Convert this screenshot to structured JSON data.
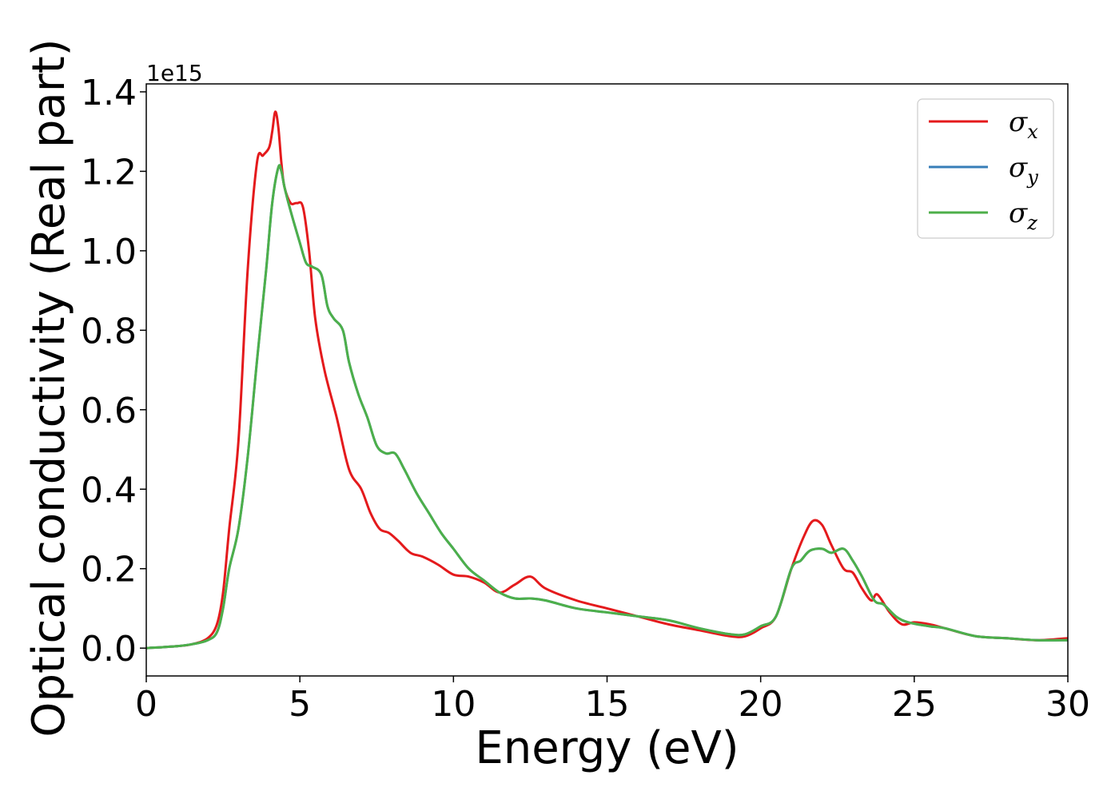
{
  "chart_data": {
    "type": "line",
    "title": "",
    "xlabel": "Energy (eV)",
    "ylabel": "Optical conductivity (Real part)",
    "y_offset_label": "1e15",
    "xlim": [
      0,
      30
    ],
    "ylim": [
      -0.07,
      1.42
    ],
    "xticks": [
      0,
      5,
      10,
      15,
      20,
      25,
      30
    ],
    "xtick_labels": [
      "0",
      "5",
      "10",
      "15",
      "20",
      "25",
      "30"
    ],
    "yticks": [
      0.0,
      0.2,
      0.4,
      0.6,
      0.8,
      1.0,
      1.2,
      1.4
    ],
    "ytick_labels": [
      "0.0",
      "0.2",
      "0.4",
      "0.6",
      "0.8",
      "1.0",
      "1.2",
      "1.4"
    ],
    "grid": false,
    "legend_position": "top-right",
    "series": [
      {
        "name": "σx",
        "name_base": "σ",
        "name_sub": "x",
        "color": "#e41a1c",
        "x": [
          0,
          1,
          1.5,
          2,
          2.3,
          2.5,
          2.7,
          3,
          3.3,
          3.6,
          3.8,
          4,
          4.1,
          4.2,
          4.3,
          4.4,
          4.5,
          4.7,
          4.9,
          5.1,
          5.3,
          5.5,
          5.8,
          6.2,
          6.6,
          7,
          7.3,
          7.6,
          7.9,
          8.2,
          8.6,
          9,
          9.5,
          10,
          10.5,
          11,
          11.5,
          12,
          12.5,
          13,
          14,
          15,
          16,
          17,
          18,
          19,
          19.5,
          20,
          20.5,
          21,
          21.4,
          21.7,
          22,
          22.3,
          22.7,
          23,
          23.3,
          23.6,
          23.8,
          24.2,
          24.6,
          25,
          25.5,
          26,
          27,
          28,
          29,
          30
        ],
        "y": [
          0,
          0.005,
          0.01,
          0.025,
          0.06,
          0.14,
          0.3,
          0.52,
          0.95,
          1.22,
          1.24,
          1.26,
          1.3,
          1.35,
          1.31,
          1.22,
          1.16,
          1.12,
          1.12,
          1.11,
          1.0,
          0.83,
          0.7,
          0.58,
          0.45,
          0.4,
          0.34,
          0.3,
          0.29,
          0.27,
          0.24,
          0.23,
          0.21,
          0.185,
          0.18,
          0.165,
          0.14,
          0.16,
          0.18,
          0.15,
          0.12,
          0.1,
          0.08,
          0.06,
          0.045,
          0.03,
          0.03,
          0.05,
          0.08,
          0.2,
          0.28,
          0.32,
          0.31,
          0.26,
          0.2,
          0.19,
          0.15,
          0.12,
          0.135,
          0.09,
          0.06,
          0.065,
          0.06,
          0.05,
          0.03,
          0.025,
          0.02,
          0.025
        ]
      },
      {
        "name": "σy",
        "name_base": "σ",
        "name_sub": "y",
        "color": "#377eb8",
        "x": [
          0,
          1,
          1.5,
          2,
          2.3,
          2.5,
          2.7,
          3,
          3.3,
          3.6,
          3.9,
          4.1,
          4.3,
          4.4,
          4.5,
          4.7,
          5,
          5.2,
          5.4,
          5.7,
          5.9,
          6.1,
          6.4,
          6.6,
          6.9,
          7.2,
          7.5,
          7.8,
          8.1,
          8.4,
          8.8,
          9.2,
          9.6,
          10,
          10.5,
          11,
          11.5,
          12,
          12.5,
          13,
          14,
          15,
          16,
          17,
          18,
          19,
          19.5,
          20,
          20.5,
          21,
          21.3,
          21.6,
          22,
          22.3,
          22.7,
          23,
          23.3,
          23.7,
          24,
          24.4,
          24.8,
          25.5,
          26,
          27,
          28,
          29,
          30
        ],
        "y": [
          0,
          0.005,
          0.01,
          0.02,
          0.04,
          0.1,
          0.2,
          0.3,
          0.48,
          0.72,
          0.95,
          1.12,
          1.21,
          1.2,
          1.16,
          1.1,
          1.02,
          0.97,
          0.96,
          0.94,
          0.86,
          0.83,
          0.8,
          0.72,
          0.64,
          0.58,
          0.51,
          0.49,
          0.49,
          0.45,
          0.39,
          0.34,
          0.29,
          0.25,
          0.2,
          0.17,
          0.14,
          0.125,
          0.125,
          0.12,
          0.1,
          0.09,
          0.08,
          0.07,
          0.05,
          0.035,
          0.035,
          0.055,
          0.08,
          0.2,
          0.22,
          0.245,
          0.25,
          0.24,
          0.25,
          0.22,
          0.18,
          0.12,
          0.11,
          0.08,
          0.065,
          0.055,
          0.05,
          0.03,
          0.025,
          0.02,
          0.02
        ]
      },
      {
        "name": "σz",
        "name_base": "σ",
        "name_sub": "z",
        "color": "#4daf4a",
        "x": [
          0,
          1,
          1.5,
          2,
          2.3,
          2.5,
          2.7,
          3,
          3.3,
          3.6,
          3.9,
          4.1,
          4.3,
          4.4,
          4.5,
          4.7,
          5,
          5.2,
          5.4,
          5.7,
          5.9,
          6.1,
          6.4,
          6.6,
          6.9,
          7.2,
          7.5,
          7.8,
          8.1,
          8.4,
          8.8,
          9.2,
          9.6,
          10,
          10.5,
          11,
          11.5,
          12,
          12.5,
          13,
          14,
          15,
          16,
          17,
          18,
          19,
          19.5,
          20,
          20.5,
          21,
          21.3,
          21.6,
          22,
          22.3,
          22.7,
          23,
          23.3,
          23.7,
          24,
          24.4,
          24.8,
          25.5,
          26,
          27,
          28,
          29,
          30
        ],
        "y": [
          0,
          0.005,
          0.01,
          0.02,
          0.04,
          0.1,
          0.2,
          0.3,
          0.48,
          0.72,
          0.95,
          1.12,
          1.21,
          1.2,
          1.16,
          1.1,
          1.02,
          0.97,
          0.96,
          0.94,
          0.86,
          0.83,
          0.8,
          0.72,
          0.64,
          0.58,
          0.51,
          0.49,
          0.49,
          0.45,
          0.39,
          0.34,
          0.29,
          0.25,
          0.2,
          0.17,
          0.14,
          0.125,
          0.125,
          0.12,
          0.1,
          0.09,
          0.08,
          0.07,
          0.05,
          0.035,
          0.035,
          0.055,
          0.08,
          0.2,
          0.22,
          0.245,
          0.25,
          0.24,
          0.25,
          0.22,
          0.18,
          0.12,
          0.11,
          0.08,
          0.065,
          0.055,
          0.05,
          0.03,
          0.025,
          0.02,
          0.02
        ]
      }
    ]
  }
}
